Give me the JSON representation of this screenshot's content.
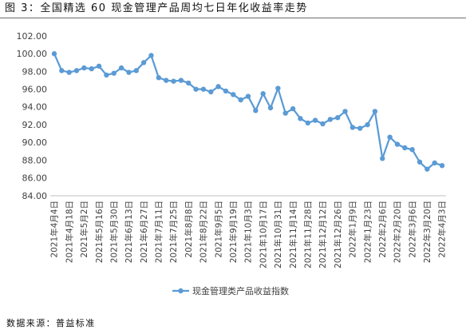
{
  "chart_data": {
    "type": "line",
    "title": "图 3：全国精选 60 现金管理产品周均七日年化收益率走势",
    "source": "数据来源：普益标准",
    "categories": [
      "2021年4月4日",
      "",
      "2021年4月18日",
      "",
      "2021年5月2日",
      "",
      "2021年5月16日",
      "",
      "2021年5月30日",
      "",
      "2021年6月13日",
      "",
      "2021年6月27日",
      "",
      "2021年7月11日",
      "",
      "2021年7月25日",
      "",
      "2021年8月8日",
      "",
      "2021年8月22日",
      "",
      "2021年9月5日",
      "",
      "2021年9月19日",
      "",
      "2021年10月3日",
      "",
      "2021年10月17日",
      "",
      "2021年10月31日",
      "",
      "2021年11月14日",
      "",
      "2021年11月28日",
      "",
      "2021年12月12日",
      "",
      "2021年12月26日",
      "",
      "2022年1月9日",
      "",
      "2022年1月23日",
      "",
      "2022年2月6日",
      "",
      "2022年2月20日",
      "",
      "2022年3月6日",
      "",
      "2022年3月20日",
      "",
      "2022年4月3日"
    ],
    "series": [
      {
        "name": "现金管理类产品收益指数",
        "color": "#5B9BD5",
        "values": [
          100.0,
          98.1,
          97.9,
          98.1,
          98.4,
          98.3,
          98.6,
          97.6,
          97.8,
          98.4,
          97.9,
          98.1,
          99.0,
          99.8,
          97.3,
          97.0,
          96.9,
          97.0,
          96.7,
          96.0,
          96.0,
          95.7,
          96.3,
          95.8,
          95.4,
          94.8,
          95.2,
          93.6,
          95.5,
          93.9,
          96.1,
          93.3,
          93.8,
          92.7,
          92.2,
          92.5,
          92.1,
          92.6,
          92.8,
          93.5,
          91.7,
          91.6,
          92.0,
          93.5,
          88.2,
          90.6,
          89.8,
          89.4,
          89.2,
          87.8,
          87.0,
          87.7,
          87.4
        ]
      }
    ],
    "ylim": [
      84,
      102
    ],
    "y_tick_labels": [
      "84.00",
      "86.00",
      "88.00",
      "90.00",
      "92.00",
      "94.00",
      "96.00",
      "98.00",
      "100.00",
      "102.00"
    ],
    "grid": false,
    "legend": "bottom"
  }
}
